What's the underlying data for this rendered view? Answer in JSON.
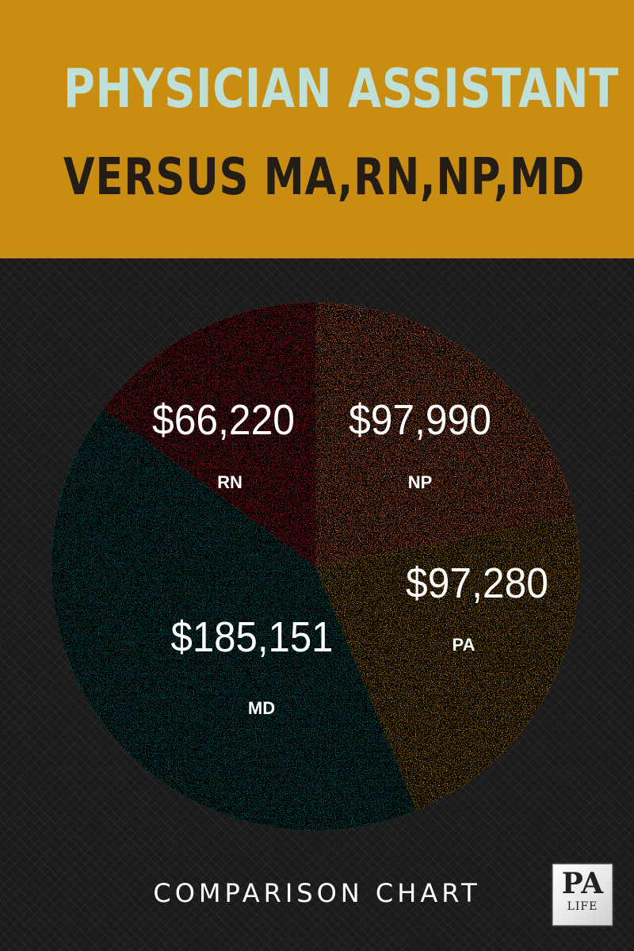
{
  "header": {
    "title_line1": "PHYSICIAN ASSISTANT",
    "title_line2": "VERSUS MA,RN,NP,MD"
  },
  "colors": {
    "header_bg": "#c98e11",
    "title_line1": "#bfe0d9",
    "title_line2": "#241d16",
    "chart_bg": "#1b1b1b"
  },
  "chart_data": {
    "type": "pie",
    "slices": [
      {
        "label": "NP",
        "value_text": "$97,990",
        "value": 97990,
        "color": "#f07136"
      },
      {
        "label": "PA",
        "value_text": "$97,280",
        "value": 97280,
        "color": "#c98e11"
      },
      {
        "label": "MD",
        "value_text": "$185,151",
        "value": 185151,
        "color": "#0c7673"
      },
      {
        "label": "RN",
        "value_text": "$66,220",
        "value": 66220,
        "color": "#c2232b"
      }
    ],
    "start_angle_deg": 0,
    "direction": "clockwise"
  },
  "footer": {
    "text": "COMPARISON CHART",
    "logo_top": "PA",
    "logo_bottom": "LIFE"
  }
}
